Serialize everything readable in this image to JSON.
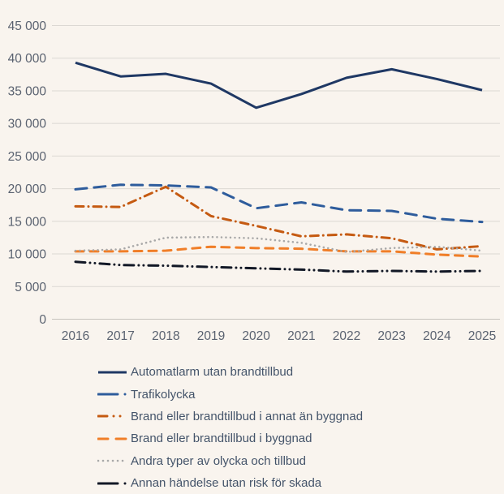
{
  "colors": {
    "background": "#F9F4EE",
    "gridline": "#DCD8D3",
    "axis_line": "#C6C2BC",
    "tick_label": "#5A6270",
    "legend_text": "#44546A"
  },
  "chart_data": {
    "type": "line",
    "title": "",
    "xlabel": "",
    "ylabel": "",
    "x_labels": [
      "2016",
      "2017",
      "2018",
      "2019",
      "2020",
      "2021",
      "2022",
      "2023",
      "2024",
      "2025"
    ],
    "ylim": [
      0,
      45000
    ],
    "ytick_step": 5000,
    "ytick_labels": [
      "0",
      "5 000",
      "10 000",
      "15 000",
      "20 000",
      "25 000",
      "30 000",
      "35 000",
      "40 000",
      "45 000"
    ],
    "grid": true,
    "legend_position": "bottom-left",
    "series": [
      {
        "name": "Automatlarm utan brandtillbud",
        "color": "#1F3864",
        "dash": "solid",
        "width": 3,
        "values": [
          39300,
          37200,
          37600,
          36100,
          32400,
          34500,
          37000,
          38300,
          36800,
          35100
        ]
      },
      {
        "name": "Trafikolycka",
        "color": "#2E5C9C",
        "dash": "long-dash",
        "width": 3,
        "values": [
          19900,
          20600,
          20500,
          20200,
          17000,
          17900,
          16700,
          16600,
          15400,
          14900
        ]
      },
      {
        "name": "Brand eller brandtillbud i annat än byggnad",
        "color": "#C55A11",
        "dash": "dash-dot",
        "width": 3,
        "values": [
          17300,
          17200,
          20300,
          15800,
          14300,
          12700,
          13000,
          12400,
          10700,
          11200
        ]
      },
      {
        "name": "Brand eller brandtillbud i byggnad",
        "color": "#F07E28",
        "dash": "dash",
        "width": 3,
        "values": [
          10400,
          10400,
          10500,
          11100,
          10900,
          10800,
          10400,
          10400,
          9900,
          9600
        ]
      },
      {
        "name": "Andra typer av olycka och tillbud",
        "color": "#A8A8A8",
        "dash": "dot",
        "width": 2.6,
        "values": [
          10500,
          10700,
          12500,
          12600,
          12400,
          11700,
          10300,
          10900,
          11100,
          10500
        ]
      },
      {
        "name": "Annan händelse utan risk för skada",
        "color": "#121826",
        "dash": "long-dash-dot-dot",
        "width": 3,
        "values": [
          8800,
          8300,
          8200,
          8000,
          7800,
          7600,
          7300,
          7400,
          7300,
          7400
        ]
      }
    ]
  }
}
